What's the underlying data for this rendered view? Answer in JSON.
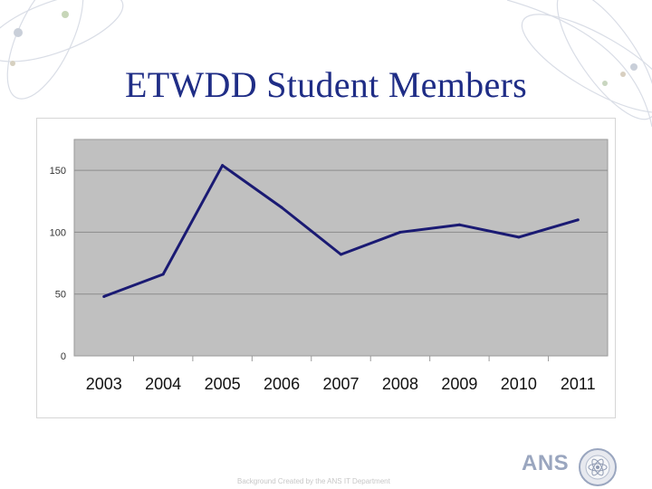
{
  "slide": {
    "title": "ETWDD Student Members",
    "footer": "Background Created by the ANS IT Department",
    "logo_text": "ANS"
  },
  "colors": {
    "title": "#1f2d86",
    "plot_area": "#c0c0c0",
    "line": "#1a1a73",
    "grid": "#8c8c8c"
  },
  "chart_data": {
    "type": "line",
    "title": "",
    "xlabel": "",
    "ylabel": "",
    "categories": [
      "2003",
      "2004",
      "2005",
      "2006",
      "2007",
      "2008",
      "2009",
      "2010",
      "2011"
    ],
    "series": [
      {
        "values": [
          48,
          66,
          154,
          120,
          82,
          100,
          106,
          96,
          110
        ]
      }
    ],
    "ylim": [
      0,
      175
    ],
    "yticks": [
      0,
      50,
      100,
      150
    ],
    "grid": true,
    "legend": "none"
  }
}
